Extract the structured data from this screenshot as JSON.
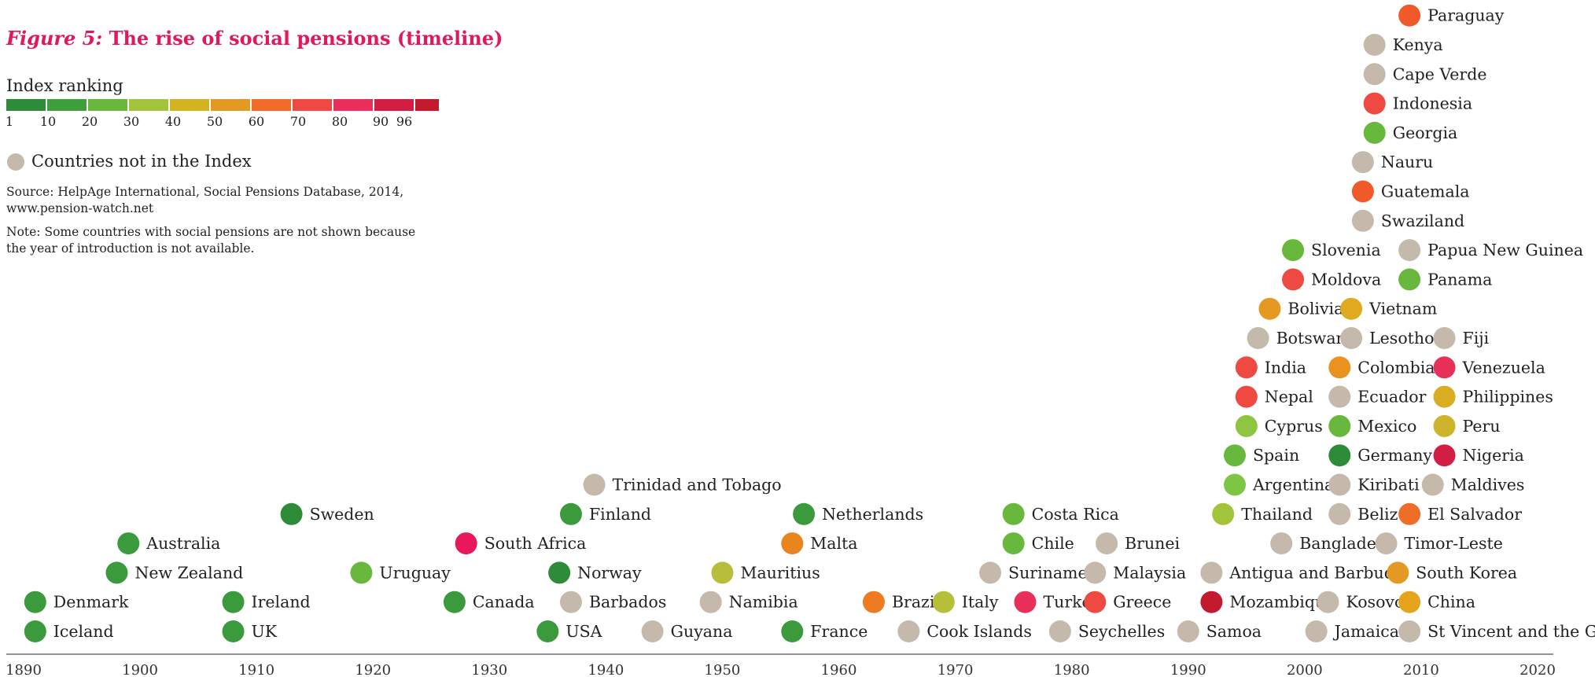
{
  "title": {
    "figure_label": "Figure 5:",
    "text": "The rise of social pensions (timeline)"
  },
  "legend": {
    "title": "Index ranking",
    "ticks": [
      "1",
      "10",
      "20",
      "30",
      "40",
      "50",
      "60",
      "70",
      "80",
      "90",
      "96"
    ],
    "colors": [
      "#2e8b37",
      "#3f9f3c",
      "#68b83d",
      "#a1c43a",
      "#d4b320",
      "#e49a22",
      "#ed6d29",
      "#ee4a42",
      "#e8305a",
      "#d11e42",
      "#c21b30"
    ],
    "not_in_index": "Countries not in the Index",
    "not_in_index_color": "#c4b9aa"
  },
  "source": [
    "Source: HelpAge International, Social Pensions Database, 2014,",
    "www.pension-watch.net"
  ],
  "note": [
    "Note: Some countries with social pensions are not shown because",
    "the year of introduction is not available."
  ],
  "chart_data": {
    "type": "scatter",
    "xlim": [
      1890,
      2020
    ],
    "x_ticks": [
      "1890",
      "1900",
      "1910",
      "1920",
      "1930",
      "1940",
      "1950",
      "1960",
      "1970",
      "1980",
      "1990",
      "2000",
      "2010",
      "2020"
    ],
    "points": [
      {
        "name": "Iceland",
        "year": 1891,
        "level": 1,
        "color": "#3a9a3c"
      },
      {
        "name": "Denmark",
        "year": 1891,
        "level": 2,
        "color": "#3a9a3c"
      },
      {
        "name": "New Zealand",
        "year": 1898,
        "level": 3,
        "color": "#3a9a3c"
      },
      {
        "name": "Australia",
        "year": 1899,
        "level": 4,
        "color": "#3a9a3c"
      },
      {
        "name": "UK",
        "year": 1908,
        "level": 1,
        "color": "#3a9a3c"
      },
      {
        "name": "Ireland",
        "year": 1908,
        "level": 2,
        "color": "#3a9a3c"
      },
      {
        "name": "Sweden",
        "year": 1913,
        "level": 5,
        "color": "#2e8b37"
      },
      {
        "name": "Uruguay",
        "year": 1919,
        "level": 3,
        "color": "#68b83d"
      },
      {
        "name": "South Africa",
        "year": 1928,
        "level": 4,
        "color": "#e8185a"
      },
      {
        "name": "Canada",
        "year": 1927,
        "level": 2,
        "color": "#3a9a3c"
      },
      {
        "name": "USA",
        "year": 1935,
        "level": 1,
        "color": "#3a9a3c"
      },
      {
        "name": "Norway",
        "year": 1936,
        "level": 3,
        "color": "#2e8b37"
      },
      {
        "name": "Barbados",
        "year": 1937,
        "level": 2,
        "color": "#c4b9aa"
      },
      {
        "name": "Finland",
        "year": 1937,
        "level": 5,
        "color": "#3a9a3c"
      },
      {
        "name": "Trinidad and Tobago",
        "year": 1939,
        "level": 6,
        "color": "#c4b9aa"
      },
      {
        "name": "Guyana",
        "year": 1944,
        "level": 1,
        "color": "#c4b9aa"
      },
      {
        "name": "Namibia",
        "year": 1949,
        "level": 2,
        "color": "#c4b9aa"
      },
      {
        "name": "Mauritius",
        "year": 1950,
        "level": 3,
        "color": "#b6be3a"
      },
      {
        "name": "France",
        "year": 1956,
        "level": 1,
        "color": "#3a9a3c"
      },
      {
        "name": "Malta",
        "year": 1956,
        "level": 4,
        "color": "#e9851f"
      },
      {
        "name": "Netherlands",
        "year": 1957,
        "level": 5,
        "color": "#3a9a3c"
      },
      {
        "name": "Brazil",
        "year": 1963,
        "level": 2,
        "color": "#ee7b22"
      },
      {
        "name": "Cook Islands",
        "year": 1966,
        "level": 1,
        "color": "#c4b9aa"
      },
      {
        "name": "Italy",
        "year": 1969,
        "level": 2,
        "color": "#b6be3a"
      },
      {
        "name": "Suriname",
        "year": 1973,
        "level": 3,
        "color": "#c4b9aa"
      },
      {
        "name": "Chile",
        "year": 1975,
        "level": 4,
        "color": "#68b83d"
      },
      {
        "name": "Costa Rica",
        "year": 1975,
        "level": 5,
        "color": "#68b83d"
      },
      {
        "name": "Turkey",
        "year": 1976,
        "level": 2,
        "color": "#e8305a"
      },
      {
        "name": "Seychelles",
        "year": 1979,
        "level": 1,
        "color": "#c4b9aa"
      },
      {
        "name": "Malaysia",
        "year": 1982,
        "level": 3,
        "color": "#c4b9aa"
      },
      {
        "name": "Greece",
        "year": 1982,
        "level": 2,
        "color": "#ee4a42"
      },
      {
        "name": "Brunei",
        "year": 1983,
        "level": 4,
        "color": "#c4b9aa"
      },
      {
        "name": "Samoa",
        "year": 1990,
        "level": 1,
        "color": "#c4b9aa"
      },
      {
        "name": "Mozambique",
        "year": 1992,
        "level": 2,
        "color": "#c21b30"
      },
      {
        "name": "Antigua and Barbuda",
        "year": 1992,
        "level": 3,
        "color": "#c4b9aa"
      },
      {
        "name": "Thailand",
        "year": 1993,
        "level": 5,
        "color": "#a1c43a"
      },
      {
        "name": "Argentina",
        "year": 1994,
        "level": 6,
        "color": "#7ec545"
      },
      {
        "name": "Spain",
        "year": 1994,
        "level": 7,
        "color": "#68b83d"
      },
      {
        "name": "Cyprus",
        "year": 1995,
        "level": 8,
        "color": "#8fc641"
      },
      {
        "name": "Nepal",
        "year": 1995,
        "level": 9,
        "color": "#ee4a42"
      },
      {
        "name": "India",
        "year": 1995,
        "level": 10,
        "color": "#ee4a42"
      },
      {
        "name": "Botswana",
        "year": 1996,
        "level": 11,
        "color": "#c4b9aa"
      },
      {
        "name": "Bolivia",
        "year": 1997,
        "level": 12,
        "color": "#e49a22"
      },
      {
        "name": "Moldova",
        "year": 1999,
        "level": 13,
        "color": "#ee4a42"
      },
      {
        "name": "Slovenia",
        "year": 1999,
        "level": 14,
        "color": "#68b83d"
      },
      {
        "name": "Bangladesh",
        "year": 1998,
        "level": 4,
        "color": "#c4b9aa"
      },
      {
        "name": "Jamaica",
        "year": 2001,
        "level": 1,
        "color": "#c4b9aa"
      },
      {
        "name": "Kosovo",
        "year": 2002,
        "level": 2,
        "color": "#c4b9aa"
      },
      {
        "name": "Belize",
        "year": 2003,
        "level": 5,
        "color": "#c4b9aa"
      },
      {
        "name": "Kiribati",
        "year": 2003,
        "level": 6,
        "color": "#c4b9aa"
      },
      {
        "name": "Germany",
        "year": 2003,
        "level": 7,
        "color": "#2e8b37"
      },
      {
        "name": "Mexico",
        "year": 2003,
        "level": 8,
        "color": "#68b83d"
      },
      {
        "name": "Ecuador",
        "year": 2003,
        "level": 9,
        "color": "#c4b9aa"
      },
      {
        "name": "Colombia",
        "year": 2003,
        "level": 10,
        "color": "#e9921f"
      },
      {
        "name": "Lesotho",
        "year": 2004,
        "level": 11,
        "color": "#c4b9aa"
      },
      {
        "name": "Vietnam",
        "year": 2004,
        "level": 12,
        "color": "#e0a91f"
      },
      {
        "name": "Swaziland",
        "year": 2005,
        "level": 15,
        "color": "#c4b9aa"
      },
      {
        "name": "Guatemala",
        "year": 2005,
        "level": 16,
        "color": "#f05a2a"
      },
      {
        "name": "Nauru",
        "year": 2005,
        "level": 17,
        "color": "#c4b9aa"
      },
      {
        "name": "Georgia",
        "year": 2006,
        "level": 18,
        "color": "#68b83d"
      },
      {
        "name": "Indonesia",
        "year": 2006,
        "level": 19,
        "color": "#ee4a42"
      },
      {
        "name": "Cape Verde",
        "year": 2006,
        "level": 20,
        "color": "#c4b9aa"
      },
      {
        "name": "Kenya",
        "year": 2006,
        "level": 21,
        "color": "#c4b9aa"
      },
      {
        "name": "Timor-Leste",
        "year": 2007,
        "level": 4,
        "color": "#c4b9aa"
      },
      {
        "name": "South Korea",
        "year": 2008,
        "level": 3,
        "color": "#e49a22"
      },
      {
        "name": "China",
        "year": 2009,
        "level": 2,
        "color": "#e6a31c"
      },
      {
        "name": "St Vincent and the Grenadines",
        "year": 2009,
        "level": 1,
        "color": "#c4b9aa"
      },
      {
        "name": "El Salvador",
        "year": 2009,
        "level": 5,
        "color": "#ed6d29"
      },
      {
        "name": "Panama",
        "year": 2009,
        "level": 13,
        "color": "#68b83d"
      },
      {
        "name": "Papua New Guinea",
        "year": 2009,
        "level": 14,
        "color": "#c4b9aa"
      },
      {
        "name": "Paraguay",
        "year": 2009,
        "level": 22,
        "color": "#f05a2a"
      },
      {
        "name": "Maldives",
        "year": 2011,
        "level": 6,
        "color": "#c4b9aa"
      },
      {
        "name": "Nigeria",
        "year": 2012,
        "level": 7,
        "color": "#d11e42"
      },
      {
        "name": "Peru",
        "year": 2012,
        "level": 8,
        "color": "#ccb52a"
      },
      {
        "name": "Philippines",
        "year": 2012,
        "level": 9,
        "color": "#d8ad22"
      },
      {
        "name": "Venezuela",
        "year": 2012,
        "level": 10,
        "color": "#e8305a"
      },
      {
        "name": "Fiji",
        "year": 2012,
        "level": 11,
        "color": "#c4b9aa"
      }
    ]
  }
}
